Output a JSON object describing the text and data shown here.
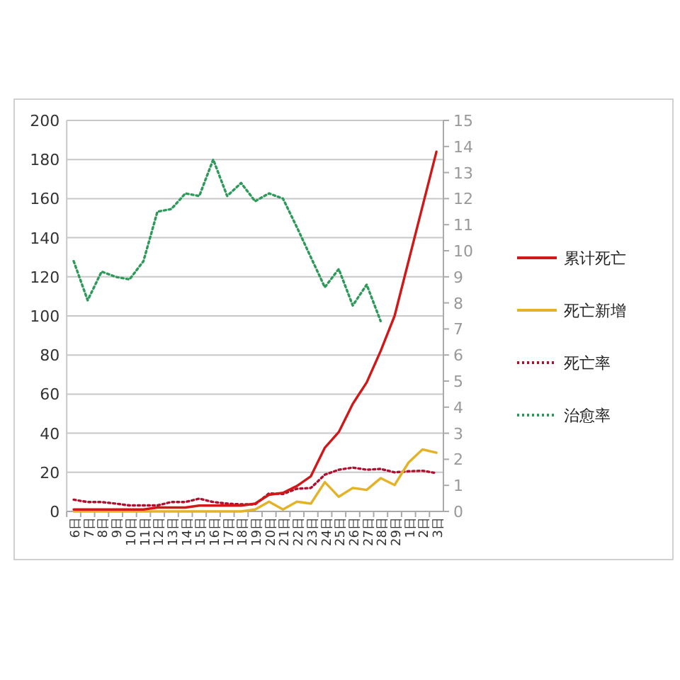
{
  "chart_data": {
    "type": "line",
    "categories": [
      "6日",
      "7日",
      "8日",
      "9日",
      "10日",
      "11日",
      "12日",
      "13日",
      "14日",
      "15日",
      "16日",
      "17日",
      "18日",
      "19日",
      "20日",
      "21日",
      "22日",
      "23日",
      "24日",
      "25日",
      "26日",
      "27日",
      "28日",
      "29日",
      "1日",
      "2日",
      "3日"
    ],
    "series": [
      {
        "name": "累计死亡",
        "color": "#d01818",
        "line_style": "solid",
        "values": [
          1,
          1,
          1,
          1,
          1,
          1,
          2,
          2,
          2,
          3,
          3,
          3,
          3,
          4,
          8.5,
          9.5,
          13,
          18,
          32.6,
          40.6,
          55,
          66,
          82,
          100,
          128,
          156,
          184
        ]
      },
      {
        "name": "死亡新增",
        "color": "#e3b226",
        "line_style": "solid",
        "values": [
          0,
          0,
          0,
          0,
          0,
          0,
          0,
          0,
          0,
          0,
          0,
          0,
          0,
          1,
          5,
          1,
          5,
          4,
          15,
          7.5,
          12,
          11,
          17,
          13.5,
          25,
          31.7,
          30
        ]
      },
      {
        "name": "死亡率",
        "color": "#b01030",
        "line_style": "dotted",
        "axis": "y2",
        "values": [
          0.45,
          0.36,
          0.36,
          0.3,
          0.23,
          0.23,
          0.23,
          0.36,
          0.36,
          0.49,
          0.36,
          0.3,
          0.27,
          0.27,
          0.69,
          0.67,
          0.87,
          0.9,
          1.41,
          1.6,
          1.68,
          1.6,
          1.63,
          1.5,
          1.54,
          1.56,
          1.47
        ]
      },
      {
        "name": "治愈率",
        "color": "#2e9a5a",
        "line_style": "dotted",
        "axis": "y2",
        "values": [
          9.6,
          8.1,
          9.2,
          9.0,
          8.9,
          9.6,
          11.5,
          11.6,
          12.2,
          12.1,
          13.5,
          12.1,
          12.6,
          11.9,
          12.2,
          12.0,
          10.9,
          9.75,
          8.6,
          9.3,
          7.9,
          8.7,
          7.3,
          null,
          null,
          null,
          null
        ]
      }
    ],
    "ylim": [
      0,
      200
    ],
    "yticks": [
      0,
      20,
      40,
      60,
      80,
      100,
      120,
      140,
      160,
      180,
      200
    ],
    "y2lim": [
      0,
      15
    ],
    "y2ticks": [
      0,
      1,
      2,
      3,
      4,
      5,
      6,
      7,
      8,
      9,
      10,
      11,
      12,
      13,
      14,
      15
    ],
    "grid": "y",
    "legend": "right",
    "marker": "none"
  }
}
